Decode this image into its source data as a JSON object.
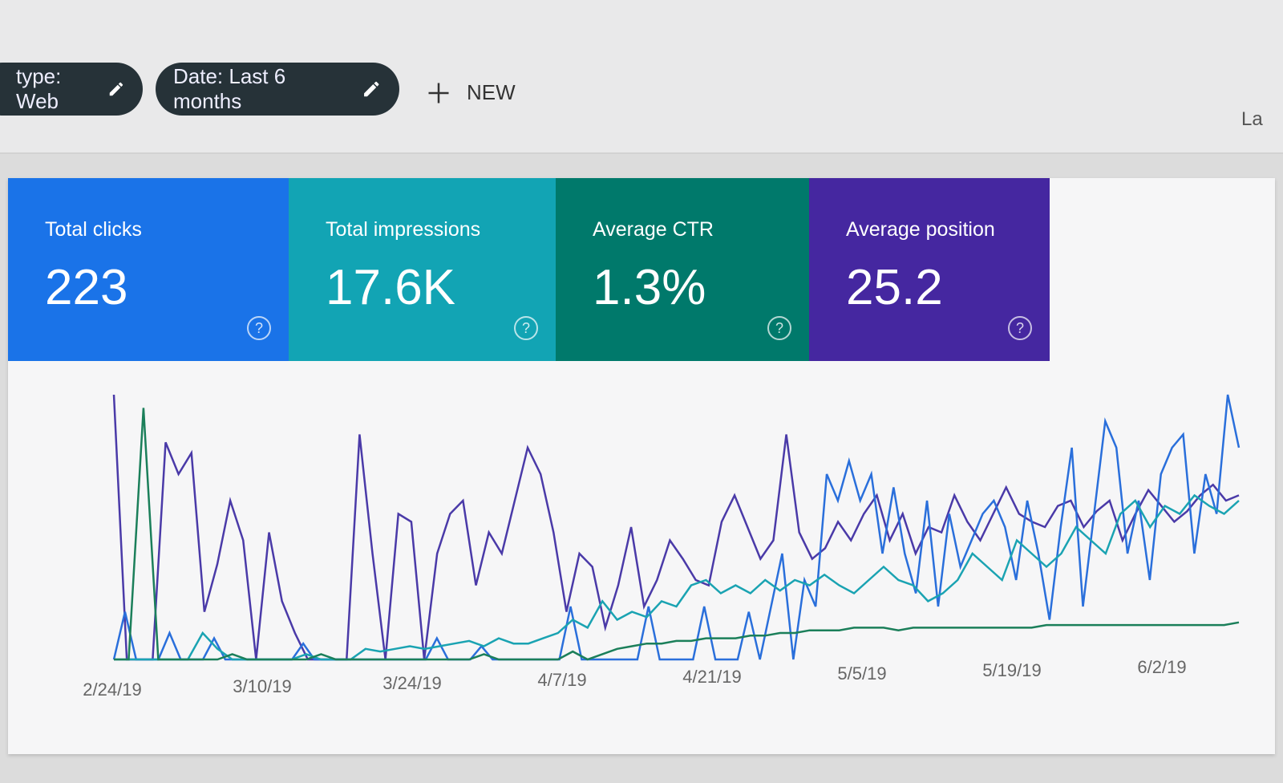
{
  "filters": [
    {
      "label": "type: Web",
      "icon": "pencil-icon"
    },
    {
      "label": "Date: Last 6 months",
      "icon": "pencil-icon"
    }
  ],
  "new_button": {
    "label": "NEW",
    "icon": "plus-icon"
  },
  "edge_text": "La",
  "cards": [
    {
      "label": "Total clicks",
      "value": "223",
      "color": "#1a73e8"
    },
    {
      "label": "Total impressions",
      "value": "17.6K",
      "color": "#12a4b4"
    },
    {
      "label": "Average CTR",
      "value": "1.3%",
      "color": "#00796b"
    },
    {
      "label": "Average position",
      "value": "25.2",
      "color": "#4527a0"
    }
  ],
  "chart_data": {
    "type": "line",
    "x_tick_labels": [
      "2/24/19",
      "3/10/19",
      "3/24/19",
      "4/7/19",
      "4/21/19",
      "5/5/19",
      "5/19/19",
      "6/2/19"
    ],
    "grid": false,
    "series": [
      {
        "metric": "Average position",
        "color": "#4a3aa8",
        "values": [
          100,
          0,
          0,
          0,
          82,
          70,
          78,
          18,
          36,
          60,
          45,
          0,
          48,
          22,
          10,
          0,
          0,
          0,
          0,
          85,
          40,
          0,
          55,
          52,
          0,
          40,
          55,
          60,
          28,
          48,
          40,
          60,
          80,
          70,
          48,
          18,
          40,
          35,
          12,
          28,
          50,
          20,
          30,
          45,
          38,
          30,
          28,
          52,
          62,
          50,
          38,
          45,
          85,
          48,
          38,
          42,
          52,
          45,
          55,
          62,
          45,
          55,
          40,
          50,
          48,
          62,
          52,
          45,
          55,
          65,
          55,
          52,
          50,
          58,
          60,
          50,
          56,
          60,
          45,
          55,
          64,
          58,
          52,
          56,
          62,
          66,
          60,
          62
        ]
      },
      {
        "metric": "Total clicks",
        "color": "#2a6fdb",
        "values": [
          0,
          18,
          0,
          0,
          0,
          10,
          0,
          0,
          0,
          8,
          0,
          0,
          0,
          0,
          0,
          0,
          0,
          6,
          0,
          0,
          0,
          0,
          0,
          0,
          0,
          0,
          0,
          0,
          0,
          8,
          0,
          0,
          0,
          5,
          0,
          0,
          0,
          0,
          0,
          0,
          0,
          20,
          0,
          0,
          0,
          0,
          0,
          0,
          20,
          0,
          0,
          0,
          0,
          20,
          0,
          0,
          0,
          18,
          0,
          20,
          40,
          0,
          30,
          20,
          70,
          60,
          75,
          60,
          70,
          40,
          65,
          40,
          25,
          60,
          20,
          55,
          35,
          45,
          55,
          60,
          50,
          30,
          60,
          40,
          15,
          50,
          80,
          20,
          55,
          90,
          80,
          40,
          60,
          30,
          70,
          80,
          85,
          40,
          70,
          55,
          100,
          80
        ]
      },
      {
        "metric": "Total impressions",
        "color": "#1aa3b2",
        "values": [
          0,
          0,
          0,
          0,
          0,
          0,
          10,
          4,
          0,
          0,
          0,
          0,
          0,
          2,
          0,
          0,
          0,
          4,
          3,
          4,
          5,
          4,
          5,
          6,
          7,
          5,
          8,
          6,
          6,
          8,
          10,
          15,
          12,
          22,
          15,
          18,
          16,
          22,
          20,
          28,
          30,
          25,
          28,
          25,
          30,
          26,
          30,
          28,
          32,
          28,
          25,
          30,
          35,
          30,
          28,
          22,
          25,
          30,
          40,
          35,
          30,
          45,
          40,
          35,
          40,
          50,
          45,
          40,
          55,
          60,
          50,
          58,
          55,
          62,
          58,
          55,
          60
        ]
      },
      {
        "metric": "Average CTR",
        "color": "#1b7f5a",
        "values": [
          0,
          0,
          95,
          0,
          0,
          0,
          0,
          0,
          2,
          0,
          0,
          0,
          0,
          0,
          2,
          0,
          0,
          0,
          0,
          0,
          0,
          0,
          0,
          0,
          0,
          2,
          0,
          0,
          0,
          0,
          0,
          3,
          0,
          2,
          4,
          5,
          6,
          6,
          7,
          7,
          8,
          8,
          8,
          9,
          9,
          10,
          10,
          11,
          11,
          11,
          12,
          12,
          12,
          11,
          12,
          12,
          12,
          12,
          12,
          12,
          12,
          12,
          12,
          13,
          13,
          13,
          13,
          13,
          13,
          13,
          13,
          13,
          13,
          13,
          13,
          13,
          14
        ]
      }
    ]
  }
}
